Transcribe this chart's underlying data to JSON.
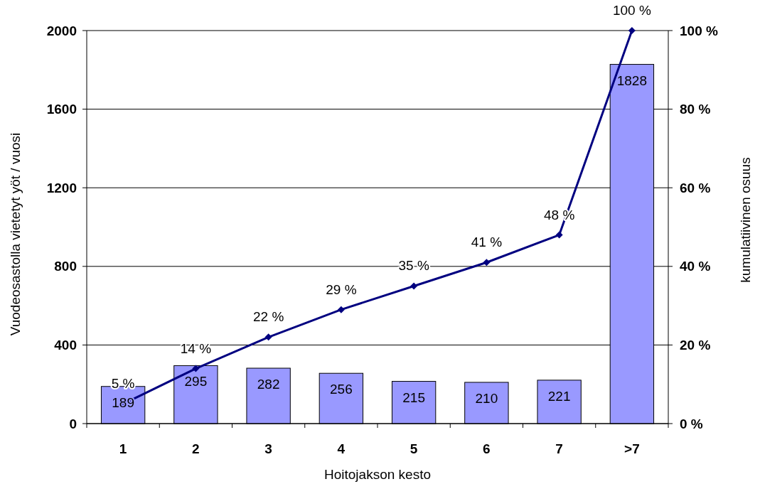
{
  "chart_data": {
    "type": "bar",
    "xlabel": "Hoitojakson kesto",
    "ylabel": "Vuodeosastolla vietetyt yöt / vuosi",
    "y2label": "kumulatiivinen osuus",
    "categories": [
      "1",
      "2",
      "3",
      "4",
      "5",
      "6",
      "7",
      ">7"
    ],
    "series": [
      {
        "color": "#9999ff",
        "values": [
          189,
          295,
          282,
          256,
          215,
          210,
          221,
          1828
        ],
        "value_labels": [
          "189",
          "295",
          "282",
          "256",
          "215",
          "210",
          "221",
          "1828"
        ]
      },
      {
        "type": "line",
        "axis": "y2",
        "color": "#000080",
        "marker": "diamond",
        "values": [
          5,
          14,
          22,
          29,
          35,
          41,
          48,
          100
        ],
        "value_labels": [
          "5 %",
          "14 %",
          "22 %",
          "29 %",
          "35 %",
          "41 %",
          "48 %",
          "100 %"
        ]
      }
    ],
    "ylim": [
      0,
      2000
    ],
    "yticks": [
      0,
      400,
      800,
      1200,
      1600,
      2000
    ],
    "y2lim": [
      0,
      100
    ],
    "y2ticks": [
      {
        "value": 0,
        "label": "0 %"
      },
      {
        "value": 20,
        "label": "20 %"
      },
      {
        "value": 40,
        "label": "40 %"
      },
      {
        "value": 60,
        "label": "60 %"
      },
      {
        "value": 80,
        "label": "80 %"
      },
      {
        "value": 100,
        "label": "100 %"
      }
    ],
    "grid": "y",
    "legend": false
  }
}
